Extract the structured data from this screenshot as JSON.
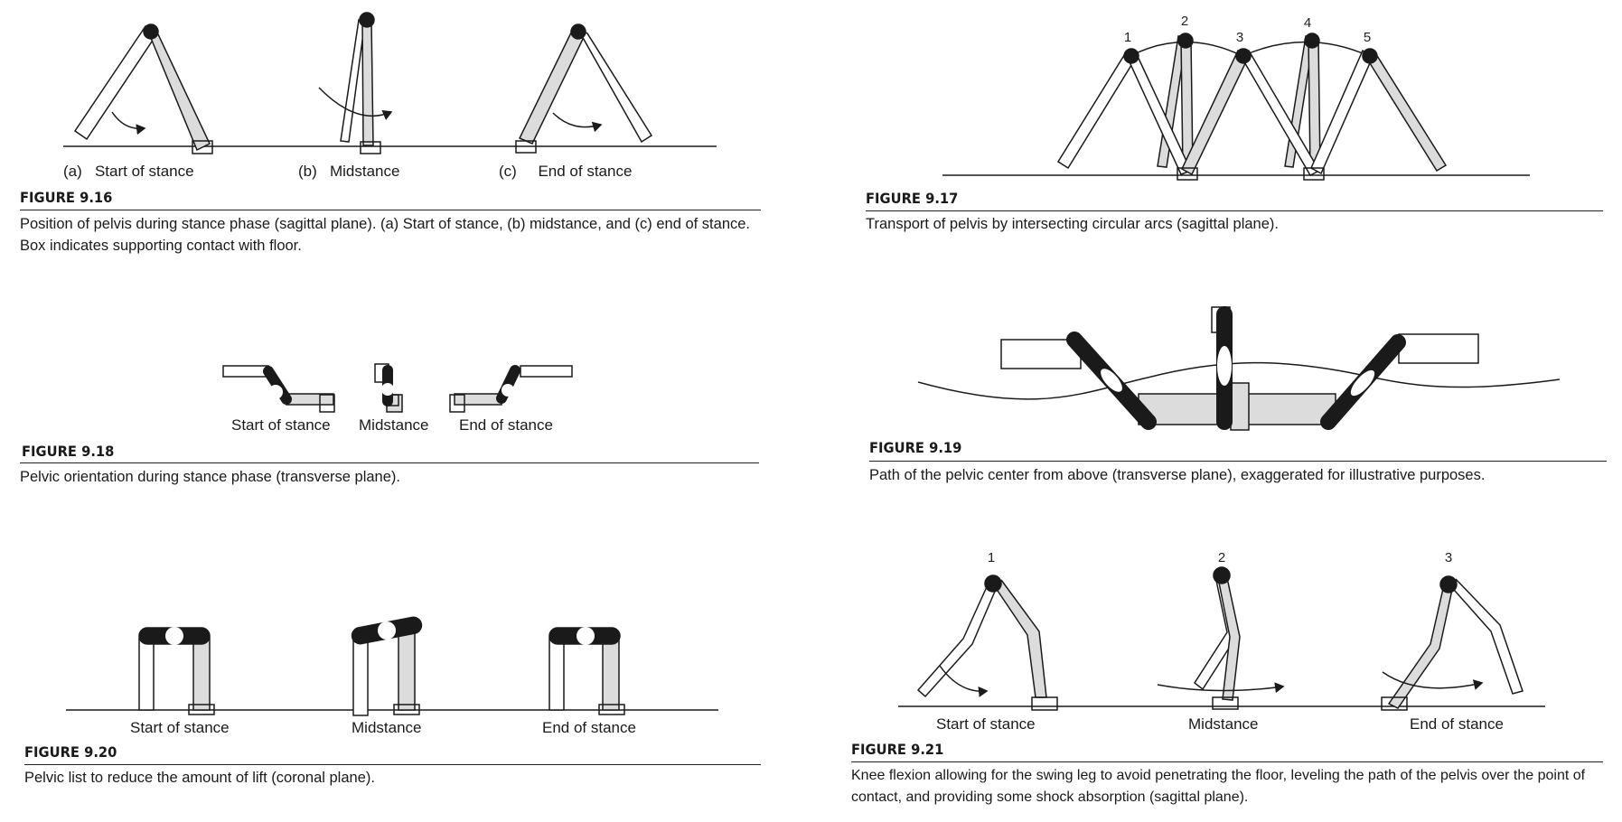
{
  "fig916": {
    "number": "FIGURE 9.16",
    "caption_line1": "Position of pelvis during stance phase (sagittal plane). (a) Start of stance, (b) midstance, and (c) end of stance.",
    "caption_line2": "Box indicates supporting contact with floor.",
    "labels": [
      {
        "letter": "(a)",
        "text": "Start of stance"
      },
      {
        "letter": "(b)",
        "text": "Midstance"
      },
      {
        "letter": "(c)",
        "text": "End of stance"
      }
    ]
  },
  "fig917": {
    "number": "FIGURE 9.17",
    "caption": "Transport of pelvis by intersecting circular arcs (sagittal plane).",
    "points": [
      "1",
      "2",
      "3",
      "4",
      "5"
    ]
  },
  "fig918": {
    "number": "FIGURE 9.18",
    "caption": "Pelvic orientation during stance phase (transverse plane).",
    "labels": [
      "Start of stance",
      "Midstance",
      "End of stance"
    ]
  },
  "fig919": {
    "number": "FIGURE 9.19",
    "caption": "Path of the pelvic center from above (transverse plane), exaggerated for illustrative purposes."
  },
  "fig920": {
    "number": "FIGURE 9.20",
    "caption": "Pelvic list to reduce the amount of lift (coronal plane).",
    "labels": [
      "Start of stance",
      "Midstance",
      "End of stance"
    ]
  },
  "fig921": {
    "number": "FIGURE 9.21",
    "caption_line1": "Knee flexion allowing for the swing leg to avoid penetrating the floor, leveling the path of the pelvis over the point of",
    "caption_line2": "contact, and providing some shock absorption (sagittal plane).",
    "labels": [
      "Start of stance",
      "Midstance",
      "End of stance"
    ],
    "points": [
      "1",
      "2",
      "3"
    ]
  },
  "colors": {
    "ink": "#1a1a1a",
    "gray_fill": "#dcdcdc",
    "white": "#ffffff"
  }
}
